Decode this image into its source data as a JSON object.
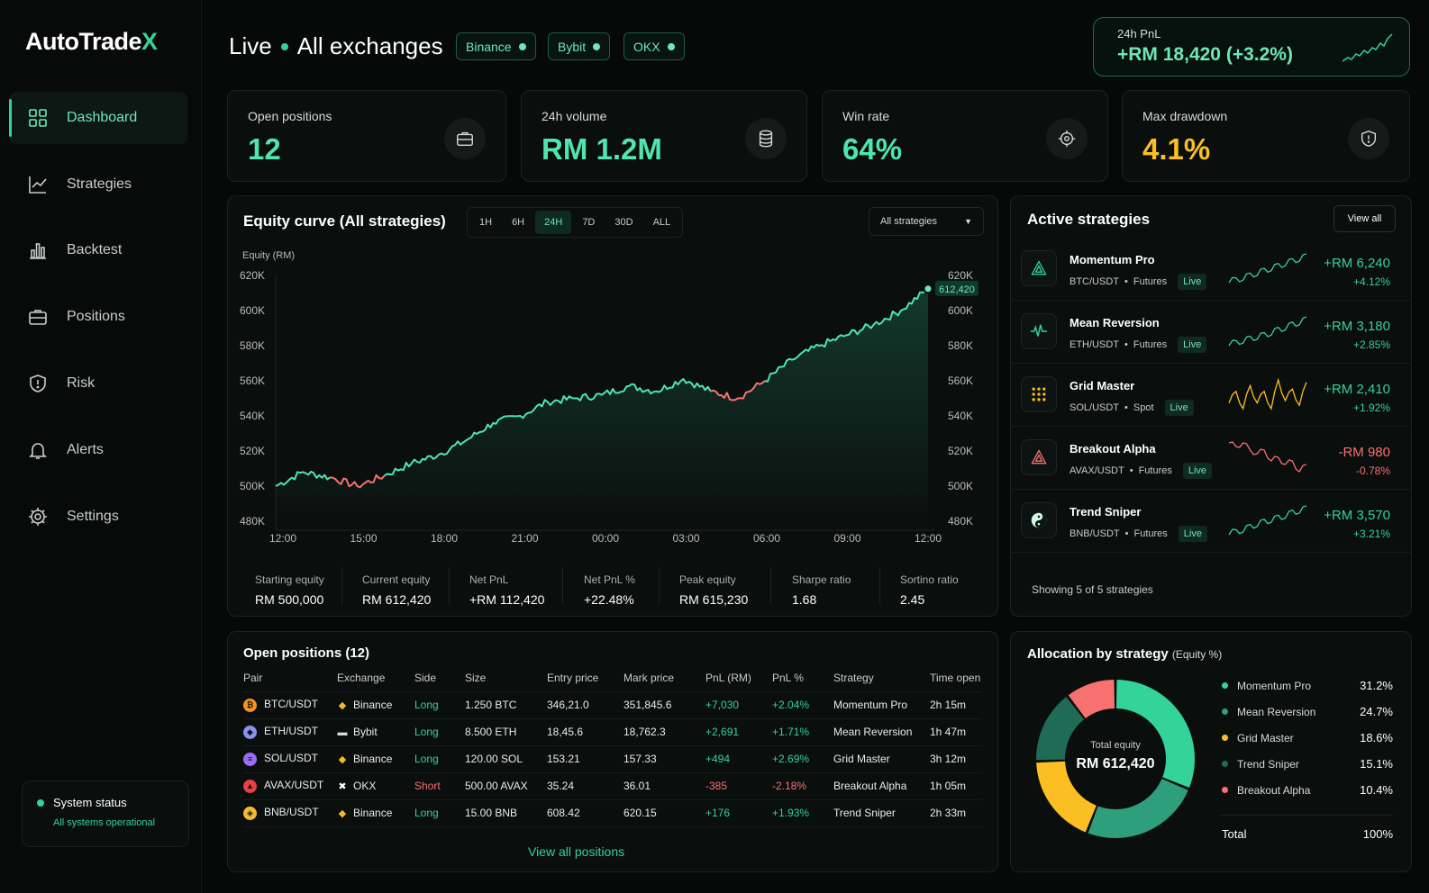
{
  "app": {
    "logo_main": "AutoTrade",
    "logo_x": "X"
  },
  "sidebar": {
    "items": [
      {
        "label": "Dashboard",
        "icon": "grid-icon"
      },
      {
        "label": "Strategies",
        "icon": "trend-icon"
      },
      {
        "label": "Backtest",
        "icon": "bar-chart-icon"
      },
      {
        "label": "Positions",
        "icon": "briefcase-icon"
      },
      {
        "label": "Risk",
        "icon": "shield-icon"
      },
      {
        "label": "Alerts",
        "icon": "bell-icon"
      },
      {
        "label": "Settings",
        "icon": "gear-icon"
      }
    ],
    "status_title": "System status",
    "status_text": "All systems operational"
  },
  "header": {
    "live": "Live",
    "scope": "All exchanges",
    "exchanges": [
      "Binance",
      "Bybit",
      "OKX"
    ],
    "pnl_label": "24h PnL",
    "pnl_value": "+RM 18,420 (+3.2%)"
  },
  "stats": [
    {
      "label": "Open positions",
      "value": "12",
      "icon": "briefcase-icon",
      "color": "#4ee5ae"
    },
    {
      "label": "24h volume",
      "value": "RM 1.2M",
      "icon": "database-icon",
      "color": "#4ee5ae"
    },
    {
      "label": "Win rate",
      "value": "64%",
      "icon": "target-icon",
      "color": "#4ee5ae"
    },
    {
      "label": "Max drawdown",
      "value": "4.1%",
      "icon": "shield-icon",
      "color": "#fbbf24"
    }
  ],
  "equity": {
    "title": "Equity curve (All strategies)",
    "timeframes": [
      "1H",
      "6H",
      "24H",
      "7D",
      "30D",
      "ALL"
    ],
    "active_timeframe": "24H",
    "filter": "All strategies",
    "axis_label": "Equity (RM)",
    "last_label": "612,420",
    "metrics": [
      {
        "label": "Starting equity",
        "value": "RM 500,000",
        "tone": "white"
      },
      {
        "label": "Current equity",
        "value": "RM 612,420",
        "tone": "green"
      },
      {
        "label": "Net PnL",
        "value": "+RM 112,420",
        "tone": "green"
      },
      {
        "label": "Net PnL %",
        "value": "+22.48%",
        "tone": "green"
      },
      {
        "label": "Peak equity",
        "value": "RM 615,230",
        "tone": "white"
      },
      {
        "label": "Sharpe ratio",
        "value": "1.68",
        "tone": "white"
      },
      {
        "label": "Sortino ratio",
        "value": "2.45",
        "tone": "white"
      }
    ]
  },
  "chart_data": {
    "type": "line",
    "ylabel": "Equity (RM)",
    "ylim": [
      480000,
      620000
    ],
    "y_ticks": [
      "620K",
      "600K",
      "580K",
      "560K",
      "540K",
      "520K",
      "500K",
      "480K"
    ],
    "x_ticks": [
      "12:00",
      "15:00",
      "18:00",
      "21:00",
      "00:00",
      "03:00",
      "06:00",
      "09:00",
      "12:00"
    ],
    "x": [
      "12:00",
      "13:00",
      "14:00",
      "15:00",
      "16:00",
      "17:00",
      "18:00",
      "19:00",
      "20:00",
      "21:00",
      "22:00",
      "23:00",
      "00:00",
      "01:00",
      "02:00",
      "03:00",
      "04:00",
      "05:00",
      "06:00",
      "07:00",
      "08:00",
      "09:00",
      "10:00",
      "11:00",
      "12:00"
    ],
    "series": [
      {
        "values": [
          500000,
          508000,
          505000,
          500000,
          506000,
          513000,
          518000,
          526000,
          536000,
          540000,
          548000,
          550000,
          552000,
          557000,
          554000,
          561000,
          554000,
          550000,
          560000,
          572000,
          580000,
          586000,
          592000,
          600000,
          612420
        ]
      }
    ],
    "drawdown_color": "#f87171",
    "line_color": "#4ee5ae",
    "grid": false
  },
  "strategies": {
    "title": "Active strategies",
    "view_all": "View all",
    "items": [
      {
        "name": "Momentum Pro",
        "pair": "BTC/USDT",
        "market": "Futures",
        "status": "Live",
        "pnl": "+RM 6,240",
        "pct": "+4.12%",
        "tone": "green",
        "icon": "triangle-logo-icon",
        "spark": [
          2,
          3,
          2.5,
          4,
          3.5,
          5,
          4.5,
          6,
          5.5,
          7,
          6.5,
          8
        ]
      },
      {
        "name": "Mean Reversion",
        "pair": "ETH/USDT",
        "market": "Futures",
        "status": "Live",
        "pnl": "+RM 3,180",
        "pct": "+2.85%",
        "tone": "green",
        "icon": "pulse-icon",
        "spark": [
          2,
          3,
          2.5,
          3.8,
          3.2,
          4.5,
          4,
          5.5,
          5,
          6.5,
          6,
          7.5
        ]
      },
      {
        "name": "Grid Master",
        "pair": "SOL/USDT",
        "market": "Spot",
        "status": "Live",
        "pnl": "+RM 2,410",
        "pct": "+1.92%",
        "tone": "gold",
        "icon": "grid-dots-icon",
        "spark": [
          4,
          5,
          3.5,
          5.5,
          4,
          5,
          3.5,
          6,
          4.2,
          5.2,
          3.8,
          5.8
        ]
      },
      {
        "name": "Breakout Alpha",
        "pair": "AVAX/USDT",
        "market": "Futures",
        "status": "Live",
        "pnl": "-RM 980",
        "pct": "-0.78%",
        "tone": "red",
        "icon": "triangle-alert-logo-icon",
        "spark": [
          7,
          6.5,
          7,
          6,
          5.5,
          6,
          4.5,
          5,
          4,
          4.5,
          3,
          4
        ]
      },
      {
        "name": "Trend Sniper",
        "pair": "BNB/USDT",
        "market": "Futures",
        "status": "Live",
        "pnl": "+RM 3,570",
        "pct": "+3.21%",
        "tone": "green",
        "icon": "yin-yang-icon",
        "spark": [
          2,
          3,
          2.5,
          4,
          3.6,
          5,
          4.4,
          5.8,
          5.2,
          6.8,
          6.2,
          7.6
        ]
      }
    ],
    "footer": "Showing 5 of 5 strategies"
  },
  "positions": {
    "title": "Open positions (12)",
    "columns": [
      "Pair",
      "Exchange",
      "Side",
      "Size",
      "Entry price",
      "Mark price",
      "PnL (RM)",
      "PnL %",
      "Strategy",
      "Time open"
    ],
    "rows": [
      {
        "pair": "BTC/USDT",
        "coin": "₿",
        "coin_color": "#f7931a",
        "exchange": "Binance",
        "ex_icon": "◆",
        "side": "Long",
        "size": "1.250 BTC",
        "entry": "346,21.0",
        "mark": "351,845.6",
        "pnl": "+7,030",
        "pct": "+2.04%",
        "strategy": "Momentum Pro",
        "time": "2h 15m"
      },
      {
        "pair": "ETH/USDT",
        "coin": "◆",
        "coin_color": "#8c8ff0",
        "exchange": "Bybit",
        "ex_icon": "▬",
        "side": "Long",
        "size": "8.500 ETH",
        "entry": "18,45.6",
        "mark": "18,762.3",
        "pnl": "+2,691",
        "pct": "+1.71%",
        "strategy": "Mean Reversion",
        "time": "1h 47m"
      },
      {
        "pair": "SOL/USDT",
        "coin": "≡",
        "coin_color": "#9b6cf7",
        "exchange": "Binance",
        "ex_icon": "◆",
        "side": "Long",
        "size": "120.00 SOL",
        "entry": "153.21",
        "mark": "157.33",
        "pnl": "+494",
        "pct": "+2.69%",
        "strategy": "Grid Master",
        "time": "3h 12m"
      },
      {
        "pair": "AVAX/USDT",
        "coin": "▲",
        "coin_color": "#e84142",
        "exchange": "OKX",
        "ex_icon": "✖",
        "side": "Short",
        "size": "500.00 AVAX",
        "entry": "35.24",
        "mark": "36.01",
        "pnl": "-385",
        "pct": "-2.18%",
        "strategy": "Breakout Alpha",
        "time": "1h 05m"
      },
      {
        "pair": "BNB/USDT",
        "coin": "◈",
        "coin_color": "#f3ba2f",
        "exchange": "Binance",
        "ex_icon": "◆",
        "side": "Long",
        "size": "15.00 BNB",
        "entry": "608.42",
        "mark": "620.15",
        "pnl": "+176",
        "pct": "+1.93%",
        "strategy": "Trend Sniper",
        "time": "2h 33m"
      }
    ],
    "view_all": "View all positions"
  },
  "allocation": {
    "title": "Allocation by strategy",
    "subtitle": "(Equity %)",
    "center_label": "Total equity",
    "center_value": "RM 612,420",
    "items": [
      {
        "name": "Momentum Pro",
        "pct": "31.2%",
        "value": 31.2,
        "color": "#34d399"
      },
      {
        "name": "Mean Reversion",
        "pct": "24.7%",
        "value": 24.7,
        "color": "#2f9e7a"
      },
      {
        "name": "Grid Master",
        "pct": "18.6%",
        "value": 18.6,
        "color": "#fbbf24"
      },
      {
        "name": "Trend Sniper",
        "pct": "15.1%",
        "value": 15.1,
        "color": "#1f6b55"
      },
      {
        "name": "Breakout Alpha",
        "pct": "10.4%",
        "value": 10.4,
        "color": "#f87171"
      }
    ],
    "total_label": "Total",
    "total_value": "100%"
  }
}
